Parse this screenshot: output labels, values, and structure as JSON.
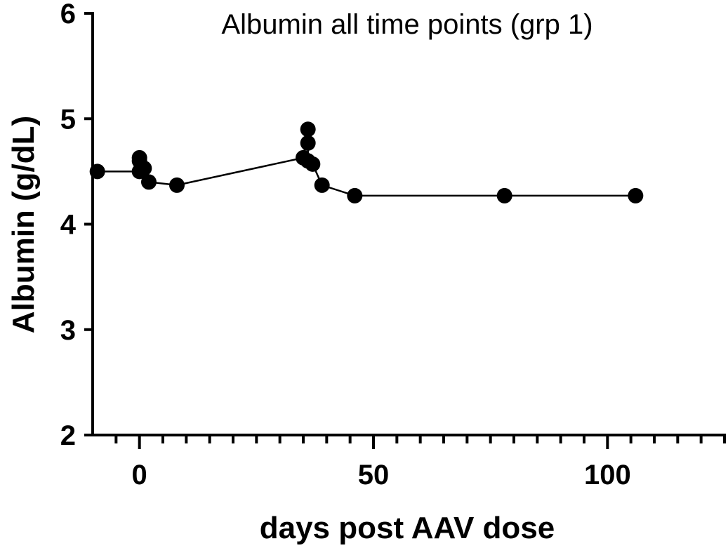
{
  "chart_data": {
    "type": "scatter",
    "title": "Albumin all time points (grp 1)",
    "xlabel": "days post AAV dose",
    "ylabel": "Albumin (g/dL)",
    "xlim": [
      -10,
      125
    ],
    "ylim": [
      2,
      6
    ],
    "x_ticks": [
      0,
      50,
      100
    ],
    "x_minor_ticks": [
      -5,
      5,
      10,
      15,
      20,
      25,
      30,
      35,
      40,
      45,
      55,
      60,
      65,
      70,
      75,
      80,
      85,
      90,
      95,
      105,
      110,
      115,
      120,
      125
    ],
    "y_ticks": [
      2,
      3,
      4,
      5,
      6
    ],
    "grid": false,
    "connected": true,
    "series": [
      {
        "x": [
          -9,
          0,
          0,
          0,
          1,
          2,
          8,
          35,
          36,
          36,
          36,
          37,
          39,
          46,
          78,
          106
        ],
        "y": [
          4.5,
          4.5,
          4.63,
          4.6,
          4.53,
          4.4,
          4.37,
          4.63,
          4.9,
          4.77,
          4.6,
          4.57,
          4.37,
          4.27,
          4.27,
          4.27
        ],
        "color": "#000000"
      }
    ],
    "line_path": [
      [
        -9,
        4.5
      ],
      [
        0,
        4.5
      ],
      [
        0,
        4.63
      ],
      [
        1,
        4.53
      ],
      [
        2,
        4.4
      ],
      [
        8,
        4.37
      ],
      [
        35,
        4.63
      ],
      [
        36,
        4.9
      ],
      [
        36,
        4.77
      ],
      [
        36,
        4.6
      ],
      [
        37,
        4.57
      ],
      [
        39,
        4.37
      ],
      [
        46,
        4.27
      ],
      [
        78,
        4.27
      ],
      [
        106,
        4.27
      ]
    ]
  }
}
